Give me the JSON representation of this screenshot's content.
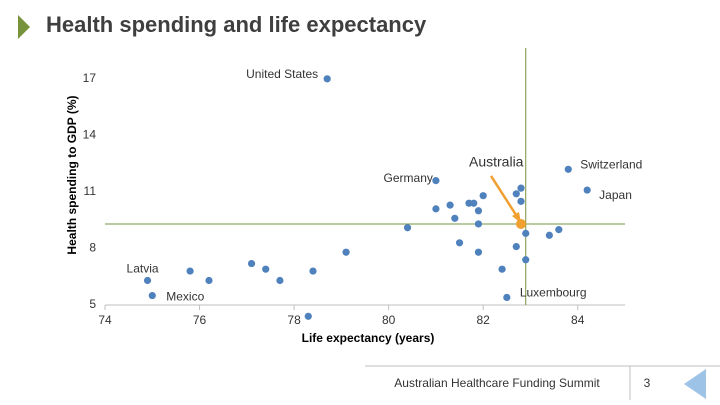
{
  "chart_data": {
    "type": "scatter",
    "title": "Health spending and life expectancy",
    "x_label": "Life expectancy (years)",
    "y_label": "Health spending to GDP (%)",
    "xlim": [
      74,
      85
    ],
    "xticks": [
      74,
      76,
      78,
      80,
      82,
      84
    ],
    "ylim": [
      5,
      18
    ],
    "yticks": [
      5,
      8,
      11,
      14,
      17
    ],
    "grid": false,
    "reference_lines": {
      "x": 82.9,
      "y": 9.3,
      "color": "#77933c"
    },
    "series": [
      {
        "color": "#4f81bd",
        "x": [
          78.7,
          81.0,
          83.8,
          84.2,
          74.9,
          75.0,
          82.5,
          75.8,
          76.2,
          77.1,
          77.4,
          77.7,
          78.4,
          79.1,
          78.3,
          80.4,
          81.0,
          81.3,
          81.4,
          81.7,
          81.8,
          81.9,
          81.9,
          82.0,
          81.5,
          81.9,
          82.4,
          82.7,
          82.8,
          82.8,
          82.7,
          82.9,
          82.9,
          83.4,
          83.6
        ],
        "values": [
          17.0,
          11.6,
          12.2,
          11.1,
          6.3,
          5.5,
          5.4,
          6.8,
          6.3,
          7.2,
          6.9,
          6.3,
          6.8,
          7.8,
          4.4,
          9.1,
          10.1,
          10.3,
          9.6,
          10.4,
          10.4,
          10.0,
          9.3,
          10.8,
          8.3,
          7.8,
          6.9,
          10.9,
          11.2,
          10.5,
          8.1,
          8.8,
          7.4,
          8.7,
          9.0
        ],
        "point_labels": [
          "United States",
          "Germany",
          "Switzerland",
          "Japan",
          "Latvia",
          "Mexico",
          "Luxembourg",
          null,
          null,
          null,
          null,
          null,
          null,
          null,
          null,
          null,
          null,
          null,
          null,
          null,
          null,
          null,
          null,
          null,
          null,
          null,
          null,
          null,
          null,
          null,
          null,
          null,
          null,
          null,
          null
        ]
      },
      {
        "color": "#f0a030",
        "x": [
          82.8
        ],
        "values": [
          9.3
        ],
        "point_labels": [
          "Australia"
        ]
      }
    ]
  },
  "footer": "Australian Healthcare Funding Summit",
  "page_number": "3"
}
